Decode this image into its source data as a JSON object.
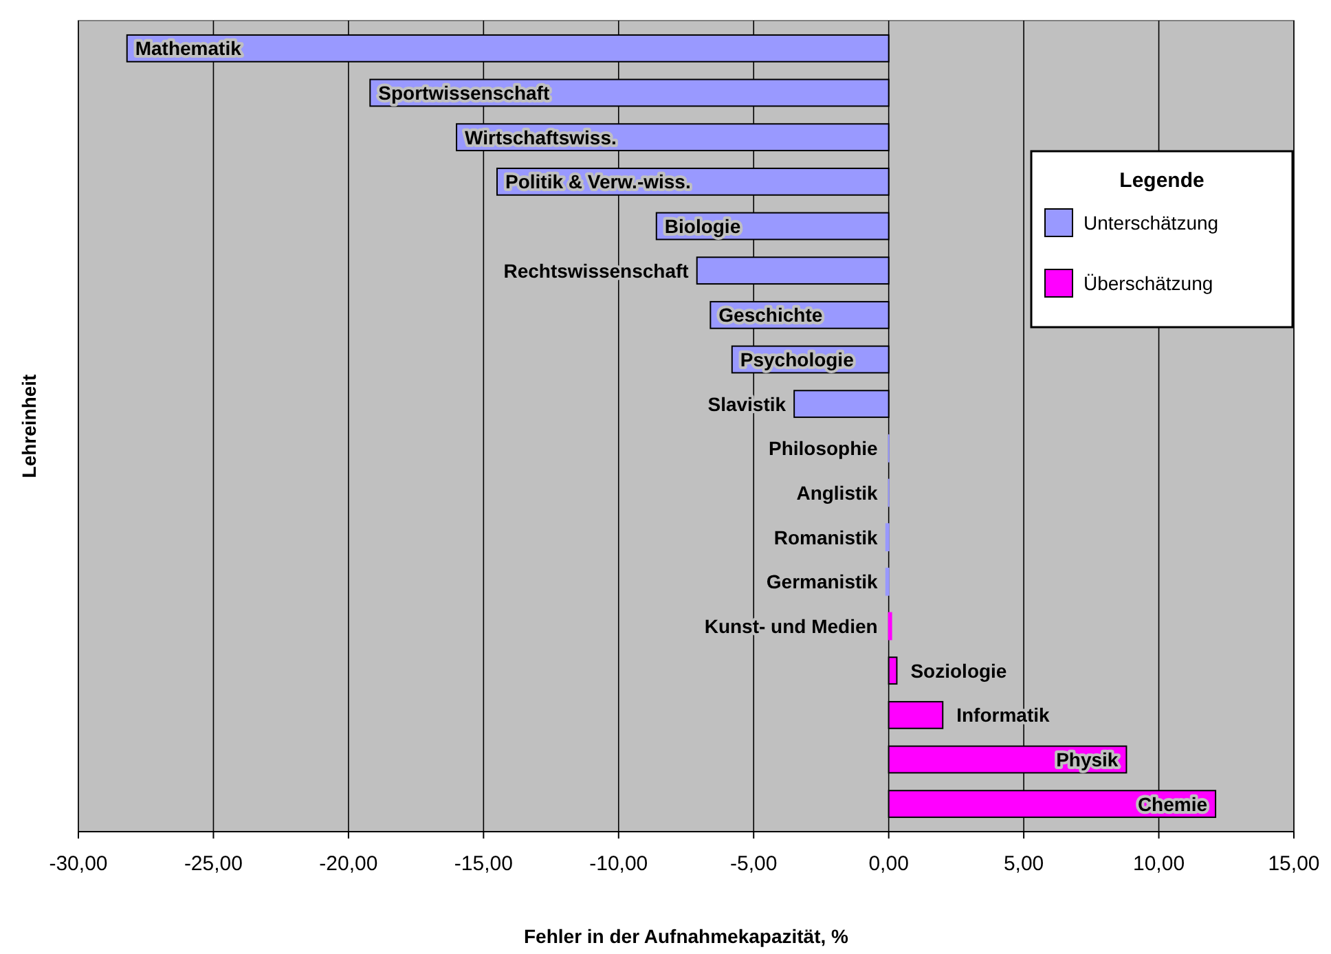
{
  "chart_data": {
    "type": "bar",
    "orientation": "horizontal",
    "stacked": true,
    "xlabel": "Fehler in der Aufnahmekapazität, %",
    "ylabel": "Lehreinheit",
    "legend_title": "Legende",
    "categories": [
      "Mathematik",
      "Sportwissenschaft",
      "Wirtschaftswiss.",
      "Politik & Verw.-wiss.",
      "Biologie",
      "Rechtswissenschaft",
      "Geschichte",
      "Psychologie",
      "Slavistik",
      "Philosophie",
      "Anglistik",
      "Romanistik",
      "Germanistik",
      "Kunst-  und Medien",
      "Soziologie",
      "Informatik",
      "Physik",
      "Chemie"
    ],
    "series": [
      {
        "name": "Unterschätzung",
        "color": "#9999ff",
        "values": [
          -28.2,
          -19.2,
          -16.0,
          -14.5,
          -8.6,
          -7.1,
          -6.6,
          -5.8,
          -3.5,
          0,
          0,
          -0.1,
          -0.1,
          null,
          null,
          null,
          null,
          null
        ]
      },
      {
        "name": "Überschätzung",
        "color": "#ff00ff",
        "values": [
          null,
          null,
          null,
          null,
          null,
          null,
          null,
          null,
          null,
          null,
          null,
          null,
          null,
          0.1,
          0.3,
          2.0,
          8.8,
          12.1
        ]
      }
    ],
    "xlim": [
      -30,
      15
    ],
    "xticks": [
      {
        "value": -30,
        "label": "-30,00"
      },
      {
        "value": -25,
        "label": "-25,00"
      },
      {
        "value": -20,
        "label": "-20,00"
      },
      {
        "value": -15,
        "label": "-15,00"
      },
      {
        "value": -10,
        "label": "-10,00"
      },
      {
        "value": -5,
        "label": "-5,00"
      },
      {
        "value": 0,
        "label": "0,00"
      },
      {
        "value": 5,
        "label": "5,00"
      },
      {
        "value": 10,
        "label": "10,00"
      },
      {
        "value": 15,
        "label": "15,00"
      }
    ],
    "tick_labels": "x",
    "grid": "x",
    "legend": "right"
  }
}
